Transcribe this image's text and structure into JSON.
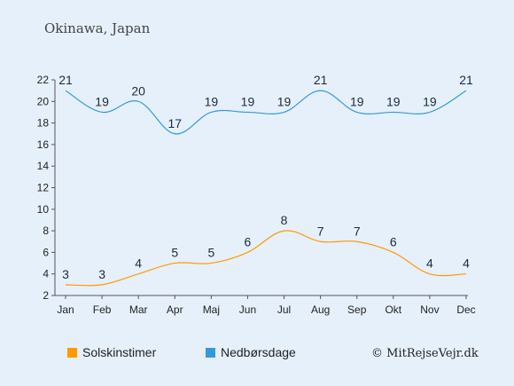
{
  "chart_data": {
    "type": "line",
    "title": "Okinawa, Japan",
    "categories": [
      "Jan",
      "Feb",
      "Mar",
      "Apr",
      "Maj",
      "Jun",
      "Jul",
      "Aug",
      "Sep",
      "Okt",
      "Nov",
      "Dec"
    ],
    "series": [
      {
        "name": "Solskinstimer",
        "color": "#ff9900",
        "values": [
          3,
          3,
          4,
          5,
          5,
          6,
          8,
          7,
          7,
          6,
          4,
          4
        ]
      },
      {
        "name": "Nedbørsdage",
        "color": "#3399dd",
        "values": [
          21,
          19,
          20,
          17,
          19,
          19,
          19,
          21,
          19,
          19,
          19,
          21
        ]
      }
    ],
    "ylim": [
      2,
      22
    ],
    "yticks": [
      2,
      4,
      6,
      8,
      10,
      12,
      14,
      16,
      18,
      20,
      22
    ],
    "grid": false,
    "legend_position": "bottom",
    "xlabel": "",
    "ylabel": ""
  },
  "credit": "© MitRejseVejr.dk",
  "colors": {
    "background": "#e6f0fa",
    "axis": "#555555",
    "labels": "#1a2a40"
  }
}
